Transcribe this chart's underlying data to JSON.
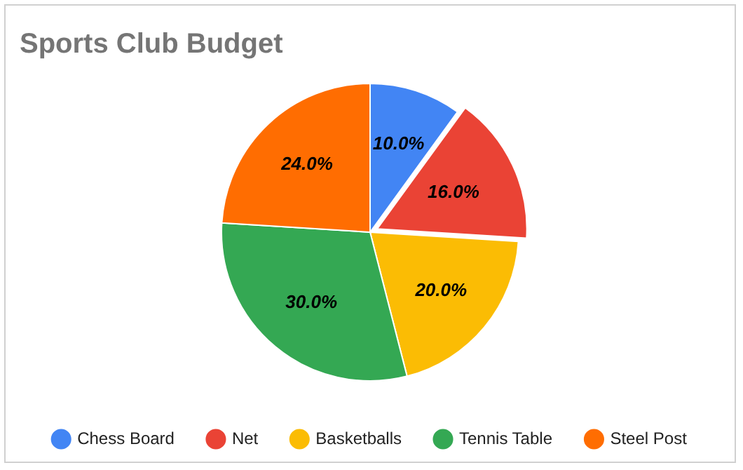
{
  "chart_data": {
    "type": "pie",
    "title": "Sports Club Budget",
    "categories": [
      "Chess Board",
      "Net",
      "Basketballs",
      "Tennis Table",
      "Steel Post"
    ],
    "values": [
      10,
      16,
      20,
      30,
      24
    ],
    "colors": [
      "#4285f4",
      "#ea4335",
      "#fbbc04",
      "#34a853",
      "#ff6d01"
    ],
    "value_labels": [
      "10.0%",
      "16.0%",
      "20.0%",
      "30.0%",
      "24.0%"
    ],
    "legend": "bottom"
  }
}
